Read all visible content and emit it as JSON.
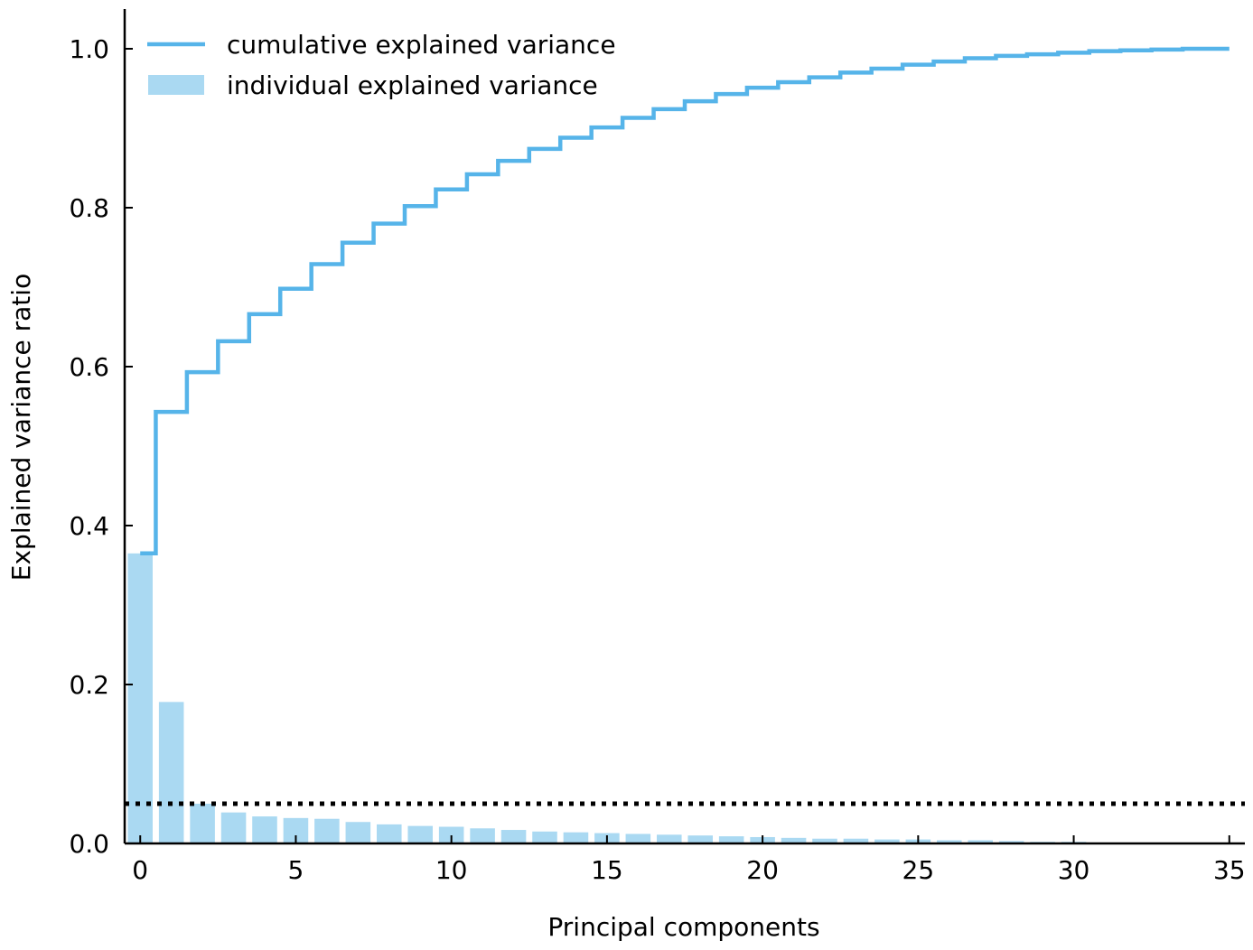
{
  "chart_data": {
    "type": "bar",
    "title": "",
    "xlabel": "Principal components",
    "ylabel": "Explained variance ratio",
    "xlim": [
      -0.5,
      35.5
    ],
    "ylim": [
      0.0,
      1.05
    ],
    "xticks": [
      0,
      5,
      10,
      15,
      20,
      25,
      30,
      35
    ],
    "xtick_labels": [
      "0",
      "5",
      "10",
      "15",
      "20",
      "25",
      "30",
      "35"
    ],
    "yticks": [
      0.0,
      0.2,
      0.4,
      0.6,
      0.8,
      1.0
    ],
    "ytick_labels": [
      "0.0",
      "0.2",
      "0.4",
      "0.6",
      "0.8",
      "1.0"
    ],
    "grid": false,
    "legend_position": "top-left",
    "colors": {
      "line": "#56b4e9",
      "bars": "#aad9f2",
      "threshold": "#000000"
    },
    "series": [
      {
        "name": "individual explained variance",
        "type": "bar",
        "x": [
          0,
          1,
          2,
          3,
          4,
          5,
          6,
          7,
          8,
          9,
          10,
          11,
          12,
          13,
          14,
          15,
          16,
          17,
          18,
          19,
          20,
          21,
          22,
          23,
          24,
          25,
          26,
          27,
          28,
          29,
          30,
          31,
          32,
          33,
          34,
          35
        ],
        "values": [
          0.365,
          0.178,
          0.05,
          0.039,
          0.034,
          0.032,
          0.031,
          0.027,
          0.024,
          0.022,
          0.021,
          0.019,
          0.017,
          0.015,
          0.014,
          0.013,
          0.012,
          0.011,
          0.01,
          0.009,
          0.008,
          0.007,
          0.006,
          0.006,
          0.005,
          0.005,
          0.004,
          0.004,
          0.003,
          0.002,
          0.002,
          0.001,
          0.001,
          0.0005,
          0.0003,
          0.0002
        ]
      },
      {
        "name": "cumulative explained variance",
        "type": "step",
        "x": [
          0,
          1,
          2,
          3,
          4,
          5,
          6,
          7,
          8,
          9,
          10,
          11,
          12,
          13,
          14,
          15,
          16,
          17,
          18,
          19,
          20,
          21,
          22,
          23,
          24,
          25,
          26,
          27,
          28,
          29,
          30,
          31,
          32,
          33,
          34,
          35
        ],
        "values": [
          0.365,
          0.543,
          0.593,
          0.632,
          0.666,
          0.698,
          0.729,
          0.756,
          0.78,
          0.802,
          0.823,
          0.842,
          0.859,
          0.874,
          0.888,
          0.901,
          0.913,
          0.924,
          0.934,
          0.943,
          0.951,
          0.958,
          0.964,
          0.97,
          0.975,
          0.98,
          0.984,
          0.988,
          0.991,
          0.993,
          0.995,
          0.997,
          0.998,
          0.999,
          1.0,
          1.0
        ]
      }
    ],
    "threshold": {
      "value": 0.05,
      "style": "dotted"
    }
  }
}
